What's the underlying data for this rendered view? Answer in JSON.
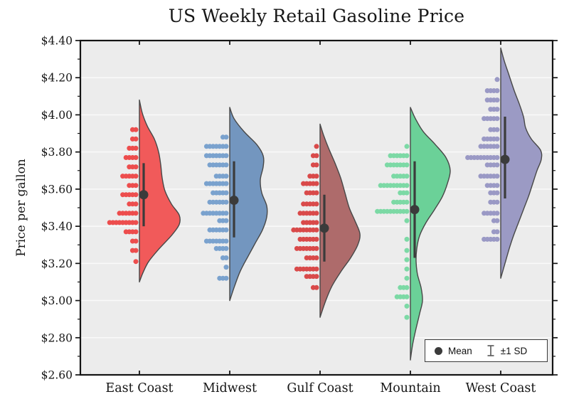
{
  "chart_data": {
    "type": "raincloud-violin",
    "title": "US Weekly Retail Gasoline Price",
    "ylabel": "Price per gallon",
    "xlabel": "",
    "ylim": [
      2.6,
      4.4
    ],
    "yticks": [
      4.4,
      4.2,
      4.0,
      3.8,
      3.6,
      3.4,
      3.2,
      3.0,
      2.8,
      2.6
    ],
    "ytick_labels": [
      "$4.40",
      "$4.20",
      "$4.00",
      "$3.80",
      "$3.60",
      "$3.40",
      "$3.20",
      "$3.00",
      "$2.80",
      "$2.60"
    ],
    "categories": [
      "East Coast",
      "Midwest",
      "Gulf Coast",
      "Mountain",
      "West Coast"
    ],
    "grid": true,
    "legend": {
      "mean_label": "Mean",
      "sd_label": "±1 SD",
      "position": "lower right"
    },
    "style": {
      "plot_bg": "#ececec",
      "grid_color": "#fafafa",
      "axis_color": "#141414",
      "marker_color": "#3b3b3b",
      "violin_outline": "#474747"
    },
    "series": [
      {
        "name": "East Coast",
        "mean": 3.57,
        "sd": 0.17,
        "errorbar": [
          3.4,
          3.74
        ],
        "range": [
          3.1,
          4.08
        ],
        "violin_color": "#f15a5a",
        "dot_color": "#ed4d4d",
        "violin_profile": [
          [
            4.08,
            0
          ],
          [
            4.01,
            4
          ],
          [
            3.94,
            11
          ],
          [
            3.87,
            21
          ],
          [
            3.8,
            27
          ],
          [
            3.73,
            30
          ],
          [
            3.66,
            32
          ],
          [
            3.59,
            36
          ],
          [
            3.52,
            45
          ],
          [
            3.46,
            56
          ],
          [
            3.41,
            56
          ],
          [
            3.35,
            45
          ],
          [
            3.28,
            28
          ],
          [
            3.21,
            13
          ],
          [
            3.15,
            5
          ],
          [
            3.1,
            0
          ]
        ],
        "dot_rows": [
          [
            3.92,
            2
          ],
          [
            3.87,
            2
          ],
          [
            3.82,
            3
          ],
          [
            3.77,
            4
          ],
          [
            3.72,
            3
          ],
          [
            3.67,
            5
          ],
          [
            3.62,
            3
          ],
          [
            3.57,
            5
          ],
          [
            3.52,
            3
          ],
          [
            3.47,
            6
          ],
          [
            3.42,
            9
          ],
          [
            3.37,
            4
          ],
          [
            3.32,
            2
          ],
          [
            3.27,
            2
          ],
          [
            3.21,
            1
          ]
        ]
      },
      {
        "name": "Midwest",
        "mean": 3.54,
        "sd": 0.21,
        "errorbar": [
          3.34,
          3.75
        ],
        "range": [
          3.0,
          4.04
        ],
        "violin_color": "#7396bf",
        "dot_color": "#7aa2ce",
        "violin_profile": [
          [
            4.04,
            0
          ],
          [
            3.98,
            6
          ],
          [
            3.91,
            20
          ],
          [
            3.84,
            38
          ],
          [
            3.78,
            47
          ],
          [
            3.72,
            47
          ],
          [
            3.65,
            43
          ],
          [
            3.58,
            45
          ],
          [
            3.51,
            52
          ],
          [
            3.45,
            52
          ],
          [
            3.38,
            46
          ],
          [
            3.31,
            36
          ],
          [
            3.24,
            26
          ],
          [
            3.16,
            15
          ],
          [
            3.08,
            7
          ],
          [
            3.0,
            0
          ]
        ],
        "dot_rows": [
          [
            3.88,
            2
          ],
          [
            3.83,
            7
          ],
          [
            3.78,
            7
          ],
          [
            3.73,
            6
          ],
          [
            3.67,
            4
          ],
          [
            3.63,
            7
          ],
          [
            3.58,
            5
          ],
          [
            3.53,
            6
          ],
          [
            3.47,
            8
          ],
          [
            3.43,
            3
          ],
          [
            3.38,
            6
          ],
          [
            3.32,
            7
          ],
          [
            3.28,
            4
          ],
          [
            3.23,
            2
          ],
          [
            3.18,
            1
          ],
          [
            3.12,
            3
          ]
        ]
      },
      {
        "name": "Gulf Coast",
        "mean": 3.39,
        "sd": 0.18,
        "errorbar": [
          3.21,
          3.57
        ],
        "range": [
          2.91,
          3.95
        ],
        "violin_color": "#ae6b6b",
        "dot_color": "#d94a4a",
        "violin_profile": [
          [
            3.95,
            0
          ],
          [
            3.89,
            5
          ],
          [
            3.82,
            12
          ],
          [
            3.74,
            21
          ],
          [
            3.66,
            29
          ],
          [
            3.58,
            35
          ],
          [
            3.5,
            41
          ],
          [
            3.43,
            49
          ],
          [
            3.36,
            56
          ],
          [
            3.3,
            53
          ],
          [
            3.23,
            43
          ],
          [
            3.16,
            30
          ],
          [
            3.08,
            17
          ],
          [
            3.0,
            8
          ],
          [
            2.91,
            0
          ]
        ],
        "dot_rows": [
          [
            3.83,
            1
          ],
          [
            3.78,
            2
          ],
          [
            3.73,
            2
          ],
          [
            3.67,
            3
          ],
          [
            3.63,
            5
          ],
          [
            3.58,
            4
          ],
          [
            3.52,
            5
          ],
          [
            3.47,
            6
          ],
          [
            3.42,
            5
          ],
          [
            3.38,
            8
          ],
          [
            3.33,
            6
          ],
          [
            3.28,
            7
          ],
          [
            3.23,
            4
          ],
          [
            3.17,
            7
          ],
          [
            3.13,
            4
          ],
          [
            3.07,
            2
          ]
        ]
      },
      {
        "name": "Mountain",
        "mean": 3.49,
        "sd": 0.26,
        "errorbar": [
          3.23,
          3.75
        ],
        "range": [
          2.68,
          4.04
        ],
        "violin_color": "#6bd198",
        "dot_color": "#7cd9a5",
        "violin_profile": [
          [
            4.04,
            0
          ],
          [
            3.98,
            7
          ],
          [
            3.91,
            18
          ],
          [
            3.84,
            35
          ],
          [
            3.77,
            50
          ],
          [
            3.7,
            56
          ],
          [
            3.63,
            52
          ],
          [
            3.56,
            45
          ],
          [
            3.49,
            34
          ],
          [
            3.42,
            22
          ],
          [
            3.35,
            13
          ],
          [
            3.28,
            9
          ],
          [
            3.21,
            8
          ],
          [
            3.14,
            10
          ],
          [
            3.07,
            15
          ],
          [
            3.0,
            17
          ],
          [
            2.93,
            13
          ],
          [
            2.85,
            8
          ],
          [
            2.76,
            3
          ],
          [
            2.68,
            0
          ]
        ],
        "dot_rows": [
          [
            3.83,
            1
          ],
          [
            3.78,
            6
          ],
          [
            3.73,
            7
          ],
          [
            3.67,
            5
          ],
          [
            3.62,
            9
          ],
          [
            3.58,
            3
          ],
          [
            3.53,
            5
          ],
          [
            3.48,
            10
          ],
          [
            3.43,
            1
          ],
          [
            3.33,
            1
          ],
          [
            3.27,
            1
          ],
          [
            3.22,
            1
          ],
          [
            3.17,
            1
          ],
          [
            3.12,
            1
          ],
          [
            3.07,
            3
          ],
          [
            3.02,
            4
          ],
          [
            2.97,
            1
          ],
          [
            2.91,
            1
          ]
        ]
      },
      {
        "name": "West Coast",
        "mean": 3.76,
        "sd": 0.22,
        "errorbar": [
          3.55,
          3.99
        ],
        "range": [
          3.12,
          4.36
        ],
        "violin_color": "#9b9ac4",
        "dot_color": "#9a99c5",
        "violin_profile": [
          [
            4.36,
            0
          ],
          [
            4.29,
            5
          ],
          [
            4.21,
            12
          ],
          [
            4.13,
            19
          ],
          [
            4.06,
            26
          ],
          [
            3.99,
            32
          ],
          [
            3.93,
            35
          ],
          [
            3.87,
            43
          ],
          [
            3.81,
            56
          ],
          [
            3.76,
            57
          ],
          [
            3.7,
            51
          ],
          [
            3.63,
            45
          ],
          [
            3.56,
            39
          ],
          [
            3.49,
            32
          ],
          [
            3.42,
            25
          ],
          [
            3.35,
            18
          ],
          [
            3.28,
            12
          ],
          [
            3.2,
            6
          ],
          [
            3.12,
            0
          ]
        ],
        "dot_rows": [
          [
            4.19,
            1
          ],
          [
            4.13,
            4
          ],
          [
            4.08,
            4
          ],
          [
            4.03,
            3
          ],
          [
            3.98,
            5
          ],
          [
            3.92,
            3
          ],
          [
            3.87,
            5
          ],
          [
            3.83,
            6
          ],
          [
            3.77,
            10
          ],
          [
            3.73,
            4
          ],
          [
            3.67,
            6
          ],
          [
            3.62,
            4
          ],
          [
            3.58,
            3
          ],
          [
            3.53,
            3
          ],
          [
            3.47,
            5
          ],
          [
            3.43,
            2
          ],
          [
            3.37,
            2
          ],
          [
            3.33,
            5
          ]
        ]
      }
    ]
  }
}
